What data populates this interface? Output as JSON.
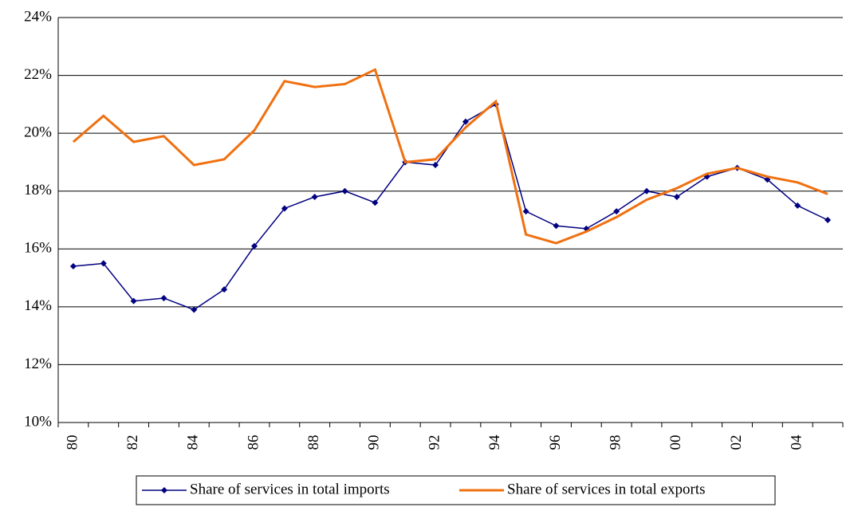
{
  "chart_data": {
    "type": "line",
    "categories": [
      "80",
      null,
      "82",
      null,
      "84",
      null,
      "86",
      null,
      "88",
      null,
      "90",
      null,
      "92",
      null,
      "94",
      null,
      "96",
      null,
      "98",
      null,
      "00",
      null,
      "02",
      null,
      "04",
      null
    ],
    "series": [
      {
        "name": "Share of services in total imports",
        "color": "#000080",
        "marker": "diamond",
        "values": [
          15.4,
          15.5,
          14.2,
          14.3,
          13.9,
          14.6,
          16.1,
          17.4,
          17.8,
          18.0,
          17.6,
          19.0,
          18.9,
          20.4,
          21.0,
          17.3,
          16.8,
          16.7,
          17.3,
          18.0,
          17.8,
          18.5,
          18.8,
          18.4,
          17.5,
          17.0
        ]
      },
      {
        "name": "Share of services in total exports",
        "color": "#f07010",
        "values": [
          19.7,
          20.6,
          19.7,
          19.9,
          18.9,
          19.1,
          20.1,
          21.8,
          21.6,
          21.7,
          22.2,
          19.0,
          19.1,
          20.2,
          21.1,
          16.5,
          16.2,
          16.6,
          17.1,
          17.7,
          18.1,
          18.6,
          18.8,
          18.5,
          18.3,
          17.9
        ]
      }
    ],
    "ylim": [
      10,
      24
    ],
    "yticks": [
      {
        "value": 10,
        "label": "10%"
      },
      {
        "value": 12,
        "label": "12%"
      },
      {
        "value": 14,
        "label": "14%"
      },
      {
        "value": 16,
        "label": "16%"
      },
      {
        "value": 18,
        "label": "18%"
      },
      {
        "value": 20,
        "label": "20%"
      },
      {
        "value": 22,
        "label": "22%"
      },
      {
        "value": 24,
        "label": "24%"
      }
    ],
    "grid": true,
    "legend": "bottom"
  }
}
